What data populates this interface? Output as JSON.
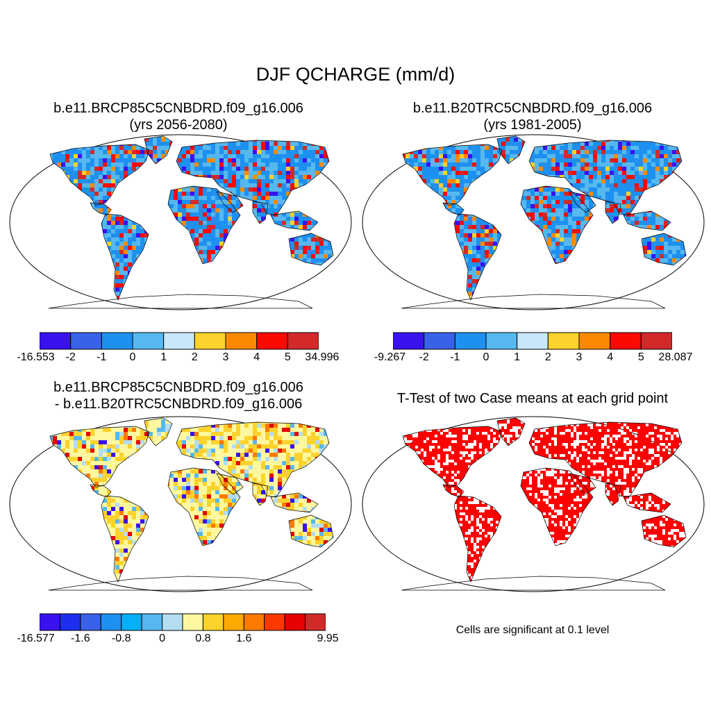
{
  "figure": {
    "title": "DJF QCHARGE (mm/d)"
  },
  "panels": {
    "future": {
      "title_line1": "b.e11.BRCP85C5CNBDRD.f09_g16.006",
      "title_line2": "(yrs 2056-2080)"
    },
    "historical": {
      "title_line1": "b.e11.B20TRC5CNBDRD.f09_g16.006",
      "title_line2": "(yrs 1981-2005)"
    },
    "difference": {
      "title_line1": "b.e11.BRCP85C5CNBDRD.f09_g16.006",
      "title_line2": "- b.e11.B20TRC5CNBDRD.f09_g16.006"
    },
    "ttest": {
      "title_line1": "T-Test of two Case means at each grid point",
      "note": "Cells are significant at 0.1 level"
    }
  },
  "colorbars": {
    "future": {
      "colors": [
        "#3a12f0",
        "#3a62e8",
        "#1e90f0",
        "#56b8ee",
        "#c8e8fa",
        "#fcd22c",
        "#fc8a00",
        "#fa0a00",
        "#d22a28"
      ],
      "labels": [
        "-16.553",
        "-2",
        "-1",
        "0",
        "1",
        "2",
        "3",
        "4",
        "5",
        "34.996"
      ]
    },
    "historical": {
      "colors": [
        "#3a12f0",
        "#3a62e8",
        "#1e90f0",
        "#56b8ee",
        "#c8e8fa",
        "#fcd22c",
        "#fc8a00",
        "#fa0a00",
        "#d22a28"
      ],
      "labels": [
        "-9.267",
        "-2",
        "-1",
        "0",
        "1",
        "2",
        "3",
        "4",
        "5",
        "28.087"
      ]
    },
    "difference": {
      "colors": [
        "#3a12f0",
        "#1e2ef0",
        "#3a62e8",
        "#1e90f0",
        "#06b0f8",
        "#56b8ee",
        "#b4dcf2",
        "#fdf8a0",
        "#fcd22c",
        "#fcaa00",
        "#fc7a00",
        "#fc3a00",
        "#e60000",
        "#d22a28"
      ],
      "labels": [
        "-16.577",
        "",
        "-1.6",
        "",
        "-0.8",
        "",
        "0",
        "",
        "0.8",
        "",
        "1.6",
        "",
        "",
        "",
        "9.95"
      ]
    }
  },
  "maps": {
    "future": {
      "palette": [
        "#1e90f0",
        "#56b8ee",
        "#fa0a00",
        "#d22a28",
        "#3a12f0",
        "#fc8a00",
        "#fcd22c"
      ]
    },
    "historical": {
      "palette": [
        "#1e90f0",
        "#56b8ee",
        "#fa0a00",
        "#d22a28",
        "#3a12f0",
        "#fc8a00",
        "#fcd22c"
      ]
    },
    "difference": {
      "palette": [
        "#fdf8a0",
        "#fcd22c",
        "#b4dcf2",
        "#56b8ee",
        "#fc7a00",
        "#e60000",
        "#3a12f0",
        "#1e90f0"
      ]
    },
    "ttest": {
      "palette": [
        "#ff0000"
      ]
    }
  }
}
